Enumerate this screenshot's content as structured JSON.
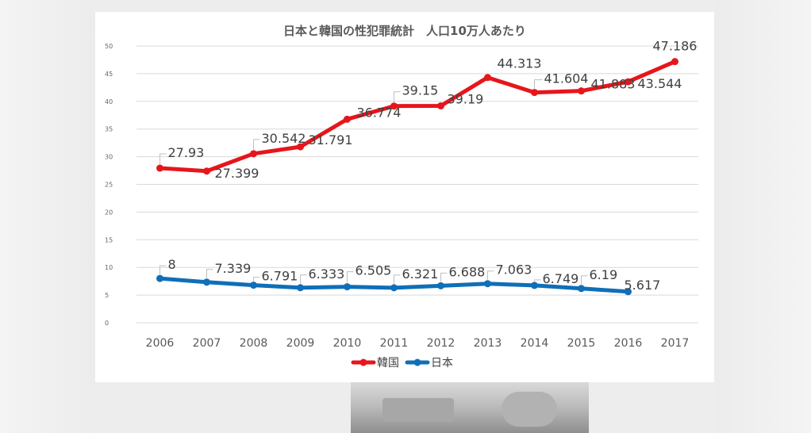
{
  "chart_data": {
    "type": "line",
    "title": "日本と韓国の性犯罪統計　人口10万人あたり",
    "xlabel": "",
    "ylabel": "",
    "categories": [
      "2006",
      "2007",
      "2008",
      "2009",
      "2010",
      "2011",
      "2012",
      "2013",
      "2014",
      "2015",
      "2016",
      "2017"
    ],
    "ylim": [
      0,
      50
    ],
    "yticks": [
      0,
      5,
      10,
      15,
      20,
      25,
      30,
      35,
      40,
      45,
      50
    ],
    "grid": true,
    "legend_position": "bottom",
    "series": [
      {
        "name": "韓国",
        "color": "#e6161b",
        "values": [
          27.93,
          27.399,
          30.542,
          31.791,
          36.774,
          39.15,
          39.19,
          44.313,
          41.604,
          41.883,
          43.544,
          47.186
        ],
        "labels": [
          "27.93",
          "27.399",
          "30.542",
          "31.791",
          "36.774",
          "39.15",
          "39.19",
          "44.313",
          "41.604",
          "41.883",
          "43.544",
          "47.186"
        ]
      },
      {
        "name": "日本",
        "color": "#0f6fb8",
        "values": [
          8,
          7.339,
          6.791,
          6.333,
          6.505,
          6.321,
          6.688,
          7.063,
          6.749,
          6.19,
          5.617,
          null
        ],
        "labels": [
          "8",
          "7.339",
          "6.791",
          "6.333",
          "6.505",
          "6.321",
          "6.688",
          "7.063",
          "6.749",
          "6.19",
          "5.617",
          ""
        ]
      }
    ]
  }
}
